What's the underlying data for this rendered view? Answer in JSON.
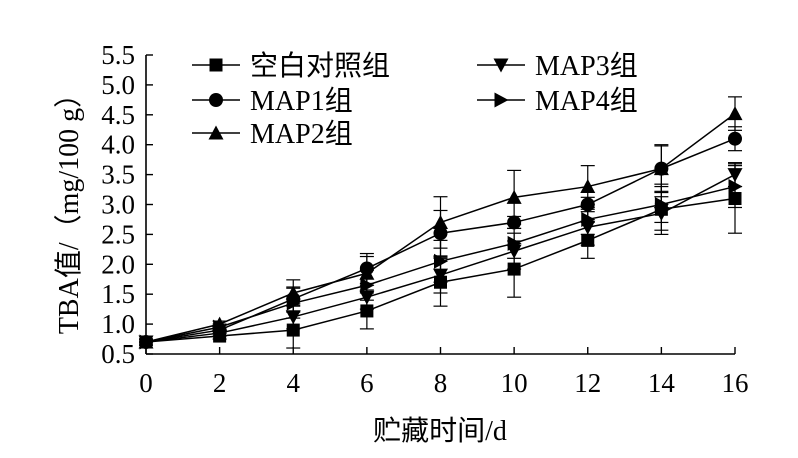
{
  "chart_data": {
    "type": "line",
    "title": "",
    "xlabel": "贮藏时间/d",
    "ylabel": "TBA值/（mg/100 g）",
    "xlim": [
      0,
      16
    ],
    "ylim": [
      0.5,
      5.5
    ],
    "xticks": [
      "0",
      "2",
      "4",
      "6",
      "8",
      "10",
      "12",
      "14",
      "16"
    ],
    "yticks": [
      "0.5",
      "1.0",
      "1.5",
      "2.0",
      "2.5",
      "3.0",
      "3.5",
      "4.0",
      "4.5",
      "5.0",
      "5.5"
    ],
    "grid": false,
    "legend_position": "top-left",
    "x": [
      0,
      2,
      4,
      6,
      8,
      10,
      12,
      14,
      16
    ],
    "series": [
      {
        "name": "空白对照组",
        "marker": "square",
        "values": [
          0.7,
          0.8,
          0.9,
          1.22,
          1.7,
          1.92,
          2.4,
          2.92,
          3.1
        ],
        "errors": [
          0.05,
          0.05,
          0.3,
          0.3,
          0.4,
          0.47,
          0.3,
          0.42,
          0.58
        ]
      },
      {
        "name": "MAP1组",
        "marker": "circle",
        "values": [
          0.7,
          0.9,
          1.42,
          1.93,
          2.52,
          2.7,
          3.0,
          3.6,
          4.1
        ],
        "errors": [
          0.05,
          0.05,
          0.2,
          0.25,
          0.38,
          0.1,
          0.12,
          0.4,
          0.2
        ]
      },
      {
        "name": "MAP2组",
        "marker": "triangle-up",
        "values": [
          0.7,
          1.0,
          1.52,
          1.85,
          2.7,
          3.12,
          3.3,
          3.6,
          4.52
        ],
        "errors": [
          0.05,
          0.05,
          0.22,
          0.28,
          0.43,
          0.45,
          0.35,
          0.38,
          0.28
        ]
      },
      {
        "name": "MAP3组",
        "marker": "triangle-down",
        "values": [
          0.7,
          0.85,
          1.12,
          1.45,
          1.82,
          2.22,
          2.62,
          2.85,
          3.5
        ],
        "errors": [
          0.05,
          0.05,
          0.2,
          0.2,
          0.3,
          0.3,
          0.3,
          0.28,
          0.2
        ]
      },
      {
        "name": "MAP4组",
        "marker": "triangle-right",
        "values": [
          0.7,
          0.95,
          1.35,
          1.65,
          2.05,
          2.35,
          2.75,
          3.0,
          3.3
        ],
        "errors": [
          0.05,
          0.05,
          0.25,
          0.25,
          0.35,
          0.25,
          0.25,
          0.3,
          0.35
        ]
      }
    ]
  }
}
